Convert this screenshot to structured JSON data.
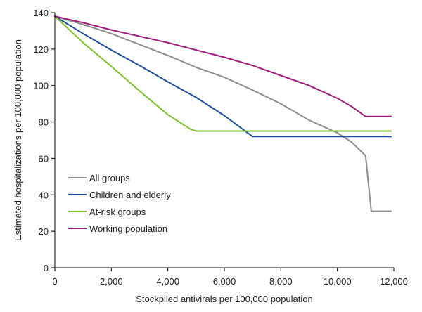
{
  "chart_data": {
    "type": "line",
    "title": "",
    "xlabel": "Stockpiled antivirals per 100,000 population",
    "ylabel": "Estimated hospitalizations per 100,000 population",
    "xlim": [
      0,
      12000
    ],
    "ylim": [
      0,
      140
    ],
    "x_ticks": [
      {
        "value": 0,
        "label": "0"
      },
      {
        "value": 2000,
        "label": "2,000"
      },
      {
        "value": 4000,
        "label": "4,000"
      },
      {
        "value": 6000,
        "label": "6,000"
      },
      {
        "value": 8000,
        "label": "8,000"
      },
      {
        "value": 10000,
        "label": "10,000"
      },
      {
        "value": 12000,
        "label": "12,000"
      }
    ],
    "y_ticks": [
      {
        "value": 0,
        "label": "0"
      },
      {
        "value": 20,
        "label": "20"
      },
      {
        "value": 40,
        "label": "40"
      },
      {
        "value": 60,
        "label": "60"
      },
      {
        "value": 80,
        "label": "80"
      },
      {
        "value": 100,
        "label": "100"
      },
      {
        "value": 120,
        "label": "120"
      },
      {
        "value": 140,
        "label": "140"
      }
    ],
    "grid": false,
    "legend_position": "lower-left",
    "series": [
      {
        "name": "All groups",
        "color": "#8c8c8c",
        "points": [
          [
            0,
            138
          ],
          [
            1000,
            133.5
          ],
          [
            2000,
            128.5
          ],
          [
            3000,
            122.5
          ],
          [
            4000,
            116.5
          ],
          [
            5000,
            110
          ],
          [
            6000,
            104.5
          ],
          [
            7000,
            97.5
          ],
          [
            8000,
            90
          ],
          [
            9000,
            81
          ],
          [
            10000,
            74
          ],
          [
            10500,
            69
          ],
          [
            11000,
            61.5
          ],
          [
            11200,
            31
          ],
          [
            11900,
            31
          ]
        ]
      },
      {
        "name": "Children and elderly",
        "color": "#1f4e9c",
        "points": [
          [
            0,
            138
          ],
          [
            1000,
            128.5
          ],
          [
            2000,
            119.5
          ],
          [
            3000,
            111
          ],
          [
            4000,
            102
          ],
          [
            5000,
            93.5
          ],
          [
            6000,
            83.5
          ],
          [
            7000,
            72
          ],
          [
            11900,
            72
          ]
        ]
      },
      {
        "name": "At-risk groups",
        "color": "#7dc22d",
        "points": [
          [
            0,
            138
          ],
          [
            1000,
            123.5
          ],
          [
            2000,
            110.5
          ],
          [
            3000,
            97
          ],
          [
            4000,
            84
          ],
          [
            4800,
            76
          ],
          [
            5000,
            75
          ],
          [
            11900,
            75
          ]
        ]
      },
      {
        "name": "Working population",
        "color": "#9e1a7b",
        "points": [
          [
            0,
            138
          ],
          [
            1000,
            134.5
          ],
          [
            2000,
            130.5
          ],
          [
            3000,
            127
          ],
          [
            4000,
            123.5
          ],
          [
            5000,
            119.5
          ],
          [
            6000,
            115.5
          ],
          [
            7000,
            111
          ],
          [
            8000,
            105.5
          ],
          [
            9000,
            100
          ],
          [
            10000,
            93
          ],
          [
            10500,
            88.5
          ],
          [
            11000,
            83
          ],
          [
            11900,
            83
          ]
        ]
      }
    ]
  }
}
